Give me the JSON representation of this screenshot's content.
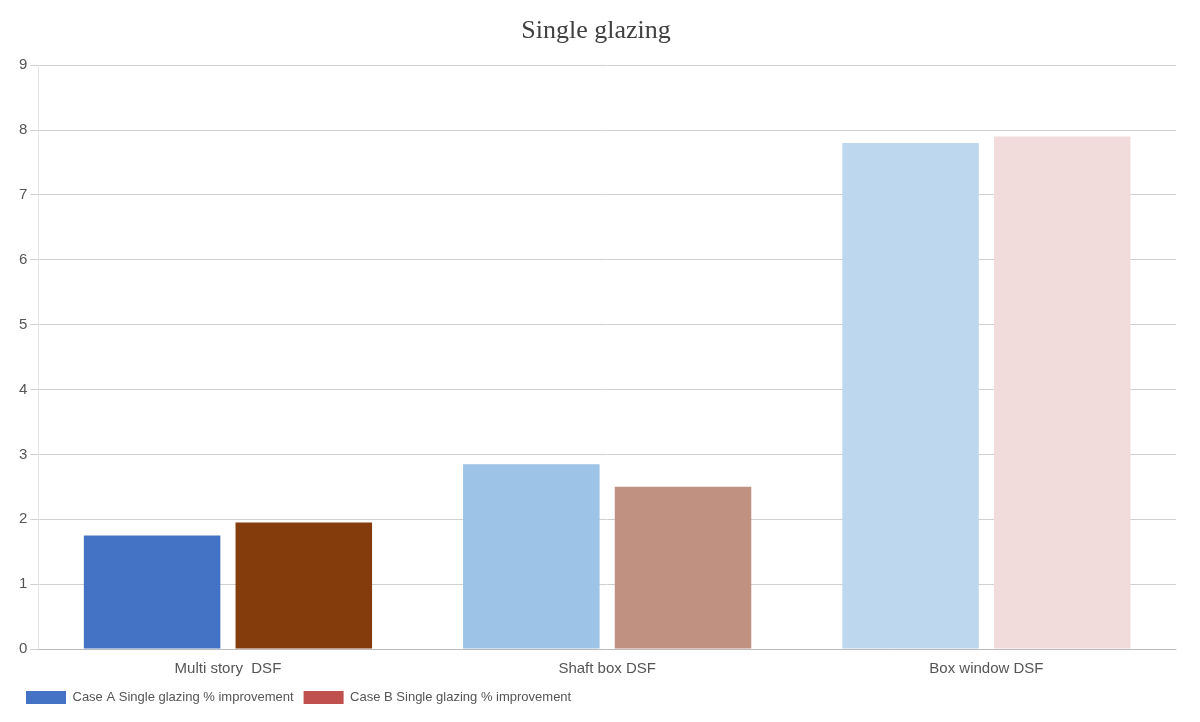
{
  "chart_data": {
    "type": "bar",
    "title": "Single glazing",
    "categories": [
      "Multi story  DSF",
      "Shaft box DSF",
      "Box window DSF"
    ],
    "series": [
      {
        "name": "Case A Single glazing % improvement",
        "color": "#4472C4",
        "colors": [
          "#4472C4",
          "#9DC3E6",
          "#BDD7EE"
        ],
        "values": [
          1.75,
          2.85,
          7.8
        ]
      },
      {
        "name": "Case B Single glazing % improvement",
        "color": "#C0504D",
        "colors": [
          "#843C0C",
          "#C09080",
          "#F2DCDB"
        ],
        "values": [
          1.95,
          2.5,
          7.9
        ]
      }
    ],
    "ylim": [
      0,
      9
    ],
    "yticks": [
      0,
      1,
      2,
      3,
      4,
      5,
      6,
      7,
      8,
      9
    ],
    "grid": true,
    "legend": "bottom"
  }
}
